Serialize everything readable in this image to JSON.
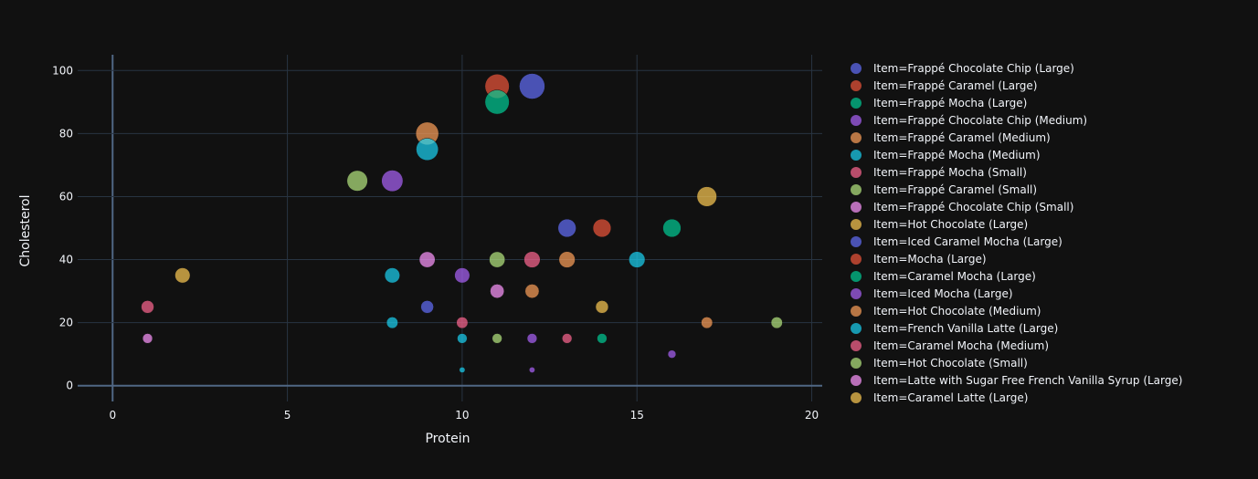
{
  "chart_data": {
    "type": "scatter",
    "title": "",
    "xlabel": "Protein",
    "ylabel": "Cholesterol",
    "xlim": [
      -1,
      20.3
    ],
    "ylim": [
      -5,
      105
    ],
    "x_ticks": [
      0,
      5,
      10,
      15,
      20
    ],
    "y_ticks": [
      0,
      20,
      40,
      60,
      80,
      100
    ],
    "grid": true,
    "legend_position": "right",
    "series": [
      {
        "name": "Item=Frappé Chocolate Chip (Large)",
        "color": "#636efa",
        "points": [
          {
            "x": 12,
            "y": 95,
            "size": 100
          }
        ]
      },
      {
        "name": "Item=Frappé Caramel (Large)",
        "color": "#EF553B",
        "points": [
          {
            "x": 11,
            "y": 95,
            "size": 90
          }
        ]
      },
      {
        "name": "Item=Frappé Mocha (Large)",
        "color": "#00cc96",
        "points": [
          {
            "x": 11,
            "y": 90,
            "size": 90
          }
        ]
      },
      {
        "name": "Item=Frappé Chocolate Chip (Medium)",
        "color": "#ab63fa",
        "points": [
          {
            "x": 8,
            "y": 65,
            "size": 70
          }
        ]
      },
      {
        "name": "Item=Frappé Caramel (Medium)",
        "color": "#FFA15A",
        "points": [
          {
            "x": 9,
            "y": 80,
            "size": 80
          }
        ]
      },
      {
        "name": "Item=Frappé Mocha (Medium)",
        "color": "#19d3f3",
        "points": [
          {
            "x": 9,
            "y": 75,
            "size": 75
          }
        ]
      },
      {
        "name": "Item=Frappé Mocha (Small)",
        "color": "#FF6692",
        "points": [
          {
            "x": 12,
            "y": 40,
            "size": 40
          }
        ]
      },
      {
        "name": "Item=Frappé Caramel (Small)",
        "color": "#B6E880",
        "points": [
          {
            "x": 7,
            "y": 65,
            "size": 65
          },
          {
            "x": 11,
            "y": 40,
            "size": 38
          }
        ]
      },
      {
        "name": "Item=Frappé Chocolate Chip (Small)",
        "color": "#FF97FF",
        "points": [
          {
            "x": 9,
            "y": 40,
            "size": 38
          }
        ]
      },
      {
        "name": "Item=Hot Chocolate (Large)",
        "color": "#FECB52",
        "points": [
          {
            "x": 17,
            "y": 60,
            "size": 60
          }
        ]
      },
      {
        "name": "Item=Iced Caramel Mocha (Large)",
        "color": "#636efa",
        "points": [
          {
            "x": 13,
            "y": 50,
            "size": 50
          },
          {
            "x": 9,
            "y": 25,
            "size": 25
          }
        ]
      },
      {
        "name": "Item=Mocha (Large)",
        "color": "#EF553B",
        "points": [
          {
            "x": 14,
            "y": 50,
            "size": 50
          }
        ]
      },
      {
        "name": "Item=Caramel Mocha (Large)",
        "color": "#00cc96",
        "points": [
          {
            "x": 16,
            "y": 50,
            "size": 50
          }
        ]
      },
      {
        "name": "Item=Iced Mocha (Large)",
        "color": "#ab63fa",
        "points": [
          {
            "x": 10,
            "y": 35,
            "size": 35
          }
        ]
      },
      {
        "name": "Item=Hot Chocolate (Medium)",
        "color": "#FFA15A",
        "points": [
          {
            "x": 13,
            "y": 40,
            "size": 40
          }
        ]
      },
      {
        "name": "Item=French Vanilla Latte (Large)",
        "color": "#19d3f3",
        "points": [
          {
            "x": 15,
            "y": 40,
            "size": 40
          }
        ]
      },
      {
        "name": "Item=Caramel Mocha (Medium)",
        "color": "#FF6692",
        "points": [
          {
            "x": 1,
            "y": 25,
            "size": 25
          }
        ]
      },
      {
        "name": "Item=Hot Chocolate (Small)",
        "color": "#B6E880",
        "points": [
          {
            "x": 19,
            "y": 20,
            "size": 20
          }
        ]
      },
      {
        "name": "Item=Latte with Sugar Free French Vanilla Syrup (Large)",
        "color": "#FF97FF",
        "points": [
          {
            "x": 11,
            "y": 30,
            "size": 30
          },
          {
            "x": 1,
            "y": 15,
            "size": 15
          }
        ]
      },
      {
        "name": "Item=Caramel Latte (Large)",
        "color": "#FECB52",
        "points": [
          {
            "x": 14,
            "y": 25,
            "size": 25
          },
          {
            "x": 2,
            "y": 35,
            "size": 35
          }
        ]
      },
      {
        "name": "",
        "color": "#19d3f3",
        "legend": false,
        "points": [
          {
            "x": 8,
            "y": 35,
            "size": 35
          },
          {
            "x": 8,
            "y": 20,
            "size": 20
          },
          {
            "x": 10,
            "y": 15,
            "size": 15
          },
          {
            "x": 10,
            "y": 5,
            "size": 5
          }
        ]
      },
      {
        "name": "",
        "color": "#FF6692",
        "legend": false,
        "points": [
          {
            "x": 10,
            "y": 20,
            "size": 20
          },
          {
            "x": 13,
            "y": 15,
            "size": 15
          }
        ]
      },
      {
        "name": "",
        "color": "#FFA15A",
        "legend": false,
        "points": [
          {
            "x": 12,
            "y": 30,
            "size": 30
          },
          {
            "x": 17,
            "y": 20,
            "size": 20
          }
        ]
      },
      {
        "name": "",
        "color": "#ab63fa",
        "legend": false,
        "points": [
          {
            "x": 12,
            "y": 15,
            "size": 15
          },
          {
            "x": 12,
            "y": 5,
            "size": 5
          },
          {
            "x": 16,
            "y": 10,
            "size": 10
          }
        ]
      },
      {
        "name": "",
        "color": "#B6E880",
        "legend": false,
        "points": [
          {
            "x": 11,
            "y": 15,
            "size": 15
          }
        ]
      },
      {
        "name": "",
        "color": "#00cc96",
        "legend": false,
        "points": [
          {
            "x": 14,
            "y": 15,
            "size": 15
          }
        ]
      }
    ]
  }
}
